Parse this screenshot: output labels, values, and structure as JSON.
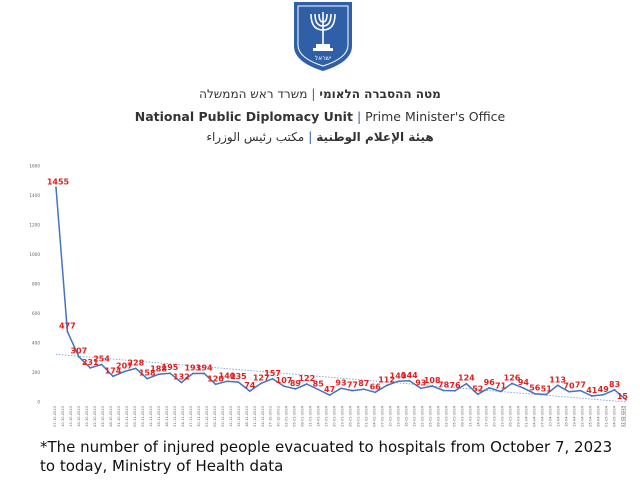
{
  "header": {
    "hebrew_bold": "מטה ההסברה הלאומי",
    "hebrew_regular": "משרד ראש הממשלה",
    "english_bold": "National Public Diplomacy Unit",
    "english_regular": "Prime Minister's Office",
    "arabic_bold": "هيئة الإعلام الوطنية",
    "arabic_regular": "مكتب رئيس الوزراء",
    "separator": "|",
    "emblem_text": "ישראל"
  },
  "caption": "*The number of injured people evacuated to hospitals from October 7, 2023 to today, Ministry of Health data",
  "colors": {
    "line": "#4472c4",
    "trend": "#7f9fd6",
    "labels": "#e02020",
    "emblem": "#2f5fa6"
  },
  "chart_data": {
    "type": "line",
    "ylim": [
      0,
      1600
    ],
    "yticks": [
      0,
      200,
      400,
      600,
      800,
      1000,
      1200,
      1400,
      1600
    ],
    "grid": false,
    "trendline": "dotted linear",
    "first_date": "07-10-2023",
    "last_date": "08-05-2024",
    "date_format": "DD-MM-YYYY",
    "tick_interval_days": 3,
    "values": [
      1455,
      477,
      307,
      231,
      254,
      174,
      207,
      228,
      158,
      188,
      195,
      132,
      193,
      194,
      120,
      140,
      135,
      74,
      127,
      157,
      107,
      89,
      122,
      85,
      47,
      93,
      77,
      87,
      66,
      112,
      140,
      144,
      93,
      108,
      78,
      76,
      124,
      52,
      96,
      71,
      126,
      94,
      56,
      51,
      113,
      70,
      77,
      41,
      49,
      83,
      15
    ],
    "labeled": [
      true,
      true,
      true,
      true,
      true,
      true,
      true,
      true,
      true,
      true,
      true,
      true,
      true,
      true,
      true,
      true,
      true,
      true,
      true,
      true,
      true,
      true,
      true,
      true,
      true,
      true,
      true,
      true,
      true,
      true,
      true,
      true,
      true,
      true,
      true,
      true,
      true,
      true,
      true,
      true,
      true,
      true,
      true,
      true,
      true,
      true,
      true,
      true,
      true,
      true,
      true
    ]
  }
}
